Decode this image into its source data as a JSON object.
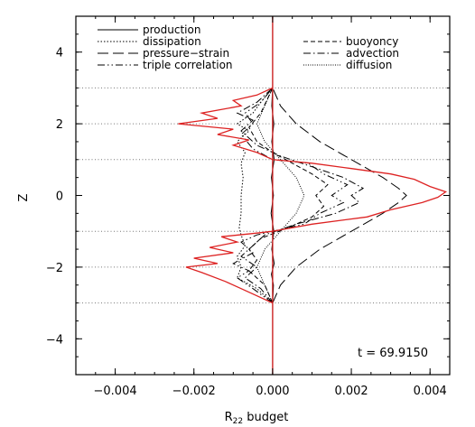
{
  "chart_data": {
    "type": "line",
    "title": "",
    "xlabel": "R",
    "xlabel_sub": "22",
    "xlabel_rest": " budget",
    "ylabel": "Z",
    "xlim": [
      -0.005,
      0.0045
    ],
    "ylim": [
      -5,
      5
    ],
    "x_ticks": [
      -0.004,
      -0.002,
      0.0,
      0.002,
      0.004
    ],
    "x_tick_labels": [
      "−0.004",
      "−0.002",
      "0.000",
      "0.002",
      "0.004"
    ],
    "y_ticks": [
      -4,
      -2,
      0,
      2,
      4
    ],
    "y_tick_labels": [
      "−4",
      "−2",
      "0",
      "2",
      "4"
    ],
    "annotation": "t = 69.9150",
    "horizontal_dotted_lines_z": [
      3,
      2,
      1,
      -1,
      -2,
      -3
    ],
    "vertical_line_x": 0.0,
    "vertical_line_color": "#cc2222",
    "legend": {
      "left": [
        {
          "label": "production",
          "style": "solid"
        },
        {
          "label": "dissipation",
          "style": "dotted"
        },
        {
          "label": "pressure−strain",
          "style": "longdash"
        },
        {
          "label": "triple correlation",
          "style": "dashdotdot"
        }
      ],
      "right": [
        {
          "label": "buoyoncy",
          "style": "dashed"
        },
        {
          "label": "advection",
          "style": "dashdot"
        },
        {
          "label": "diffusion",
          "style": "finedot"
        }
      ]
    },
    "series": [
      {
        "name": "production",
        "style": "solid",
        "color": "#000000",
        "points": [
          [
            0.0,
            -3.0
          ],
          [
            2e-05,
            -2.5
          ],
          [
            -3e-05,
            -2.2
          ],
          [
            4e-05,
            -1.9
          ],
          [
            -2e-05,
            -1.5
          ],
          [
            3e-05,
            -1.0
          ],
          [
            -4e-05,
            -0.5
          ],
          [
            2e-05,
            0.0
          ],
          [
            -3e-05,
            0.5
          ],
          [
            4e-05,
            1.0
          ],
          [
            -2e-05,
            1.5
          ],
          [
            3e-05,
            2.0
          ],
          [
            -2e-05,
            2.5
          ],
          [
            0.0,
            3.0
          ]
        ]
      },
      {
        "name": "dissipation",
        "style": "dotted",
        "color": "#000000",
        "points": [
          [
            0.0,
            -3.0
          ],
          [
            -0.0004,
            -2.6
          ],
          [
            -0.0009,
            -2.3
          ],
          [
            -0.0008,
            -2.0
          ],
          [
            -0.0009,
            -1.7
          ],
          [
            -0.0007,
            -1.4
          ],
          [
            -0.0008,
            -1.1
          ],
          [
            -0.00085,
            -0.9
          ],
          [
            -0.0008,
            -0.5
          ],
          [
            -0.0008,
            0.0
          ],
          [
            -0.00075,
            0.5
          ],
          [
            -0.0008,
            0.9
          ],
          [
            -0.0007,
            1.2
          ],
          [
            -0.0009,
            1.5
          ],
          [
            -0.0006,
            1.8
          ],
          [
            -0.0009,
            2.0
          ],
          [
            -0.0005,
            2.3
          ],
          [
            -0.0003,
            2.6
          ],
          [
            0.0,
            3.0
          ]
        ]
      },
      {
        "name": "pressure−strain",
        "style": "longdash",
        "color": "#000000",
        "points": [
          [
            0.0,
            -3.0
          ],
          [
            0.0002,
            -2.5
          ],
          [
            0.0006,
            -2.0
          ],
          [
            0.0012,
            -1.5
          ],
          [
            0.002,
            -1.0
          ],
          [
            0.0028,
            -0.5
          ],
          [
            0.0032,
            -0.2
          ],
          [
            0.0034,
            0.0
          ],
          [
            0.0032,
            0.2
          ],
          [
            0.0028,
            0.5
          ],
          [
            0.002,
            1.0
          ],
          [
            0.0012,
            1.5
          ],
          [
            0.0006,
            2.0
          ],
          [
            0.0002,
            2.5
          ],
          [
            0.0,
            3.0
          ]
        ]
      },
      {
        "name": "triple correlation",
        "style": "dashdotdot",
        "color": "#000000",
        "points": [
          [
            0.0,
            -3.0
          ],
          [
            -0.0005,
            -2.6
          ],
          [
            -0.0009,
            -2.3
          ],
          [
            -0.0006,
            -2.1
          ],
          [
            -0.001,
            -1.9
          ],
          [
            -0.0005,
            -1.6
          ],
          [
            -0.0008,
            -1.3
          ],
          [
            -0.0004,
            -1.1
          ],
          [
            0.0,
            -1.0
          ],
          [
            0.0008,
            -0.8
          ],
          [
            0.0012,
            -0.5
          ],
          [
            0.0018,
            -0.2
          ],
          [
            0.0015,
            0.0
          ],
          [
            0.0019,
            0.3
          ],
          [
            0.0013,
            0.6
          ],
          [
            0.0009,
            0.9
          ],
          [
            0.0,
            1.0
          ],
          [
            -0.0005,
            1.3
          ],
          [
            -0.0008,
            1.7
          ],
          [
            -0.0005,
            2.0
          ],
          [
            -0.0007,
            2.3
          ],
          [
            -0.0003,
            2.6
          ],
          [
            0.0,
            3.0
          ]
        ]
      },
      {
        "name": "buoyoncy",
        "style": "dashed",
        "color": "#000000",
        "points": [
          [
            0.0,
            -3.0
          ],
          [
            -0.0002,
            -2.5
          ],
          [
            -0.0006,
            -2.1
          ],
          [
            -0.0004,
            -1.8
          ],
          [
            -0.0006,
            -1.5
          ],
          [
            -0.0003,
            -1.2
          ],
          [
            0.0004,
            -0.9
          ],
          [
            0.001,
            -0.6
          ],
          [
            0.0013,
            -0.3
          ],
          [
            0.0011,
            0.0
          ],
          [
            0.0014,
            0.3
          ],
          [
            0.001,
            0.6
          ],
          [
            0.0005,
            0.9
          ],
          [
            0.0,
            1.2
          ],
          [
            -0.0004,
            1.5
          ],
          [
            -0.0006,
            1.9
          ],
          [
            -0.0003,
            2.3
          ],
          [
            0.0,
            3.0
          ]
        ]
      },
      {
        "name": "advection",
        "style": "dashdot",
        "color": "#000000",
        "points": [
          [
            0.0,
            -3.0
          ],
          [
            -0.0003,
            -2.6
          ],
          [
            -0.0007,
            -2.3
          ],
          [
            -0.0004,
            -2.0
          ],
          [
            -0.0008,
            -1.7
          ],
          [
            -0.0005,
            -1.4
          ],
          [
            -0.0002,
            -1.1
          ],
          [
            0.0006,
            -0.8
          ],
          [
            0.0016,
            -0.5
          ],
          [
            0.0022,
            -0.2
          ],
          [
            0.002,
            0.0
          ],
          [
            0.0023,
            0.2
          ],
          [
            0.0018,
            0.5
          ],
          [
            0.001,
            0.8
          ],
          [
            0.0002,
            1.1
          ],
          [
            -0.0004,
            1.4
          ],
          [
            -0.0008,
            1.8
          ],
          [
            -0.0005,
            2.1
          ],
          [
            -0.0009,
            2.3
          ],
          [
            -0.0004,
            2.6
          ],
          [
            0.0,
            3.0
          ]
        ]
      },
      {
        "name": "diffusion",
        "style": "finedot",
        "color": "#000000",
        "points": [
          [
            0.0,
            -3.0
          ],
          [
            -0.0002,
            -2.5
          ],
          [
            -0.0004,
            -2.0
          ],
          [
            -0.0002,
            -1.5
          ],
          [
            0.0002,
            -1.0
          ],
          [
            0.0006,
            -0.5
          ],
          [
            0.0008,
            0.0
          ],
          [
            0.0006,
            0.5
          ],
          [
            0.0002,
            1.0
          ],
          [
            -0.0002,
            1.5
          ],
          [
            -0.0004,
            2.0
          ],
          [
            -0.0002,
            2.5
          ],
          [
            0.0,
            3.0
          ]
        ]
      },
      {
        "name": "total",
        "style": "solid",
        "color": "#dd2222",
        "points": [
          [
            0.0,
            -3.0
          ],
          [
            -0.0004,
            -2.8
          ],
          [
            -0.0008,
            -2.6
          ],
          [
            -0.0012,
            -2.4
          ],
          [
            -0.0018,
            -2.15
          ],
          [
            -0.0022,
            -2.0
          ],
          [
            -0.0014,
            -1.9
          ],
          [
            -0.002,
            -1.75
          ],
          [
            -0.001,
            -1.6
          ],
          [
            -0.0016,
            -1.45
          ],
          [
            -0.0009,
            -1.3
          ],
          [
            -0.0013,
            -1.15
          ],
          [
            -0.0004,
            -1.05
          ],
          [
            0.0,
            -1.0
          ],
          [
            0.001,
            -0.8
          ],
          [
            0.0024,
            -0.6
          ],
          [
            0.003,
            -0.4
          ],
          [
            0.0038,
            -0.2
          ],
          [
            0.0042,
            -0.05
          ],
          [
            0.0044,
            0.1
          ],
          [
            0.004,
            0.25
          ],
          [
            0.0036,
            0.45
          ],
          [
            0.003,
            0.6
          ],
          [
            0.002,
            0.75
          ],
          [
            0.001,
            0.9
          ],
          [
            0.0,
            1.0
          ],
          [
            -0.0004,
            1.2
          ],
          [
            -0.001,
            1.4
          ],
          [
            -0.0006,
            1.55
          ],
          [
            -0.0014,
            1.7
          ],
          [
            -0.001,
            1.85
          ],
          [
            -0.0024,
            2.0
          ],
          [
            -0.0014,
            2.15
          ],
          [
            -0.0018,
            2.3
          ],
          [
            -0.0008,
            2.5
          ],
          [
            -0.001,
            2.65
          ],
          [
            -0.0004,
            2.8
          ],
          [
            0.0,
            3.0
          ]
        ]
      }
    ]
  }
}
